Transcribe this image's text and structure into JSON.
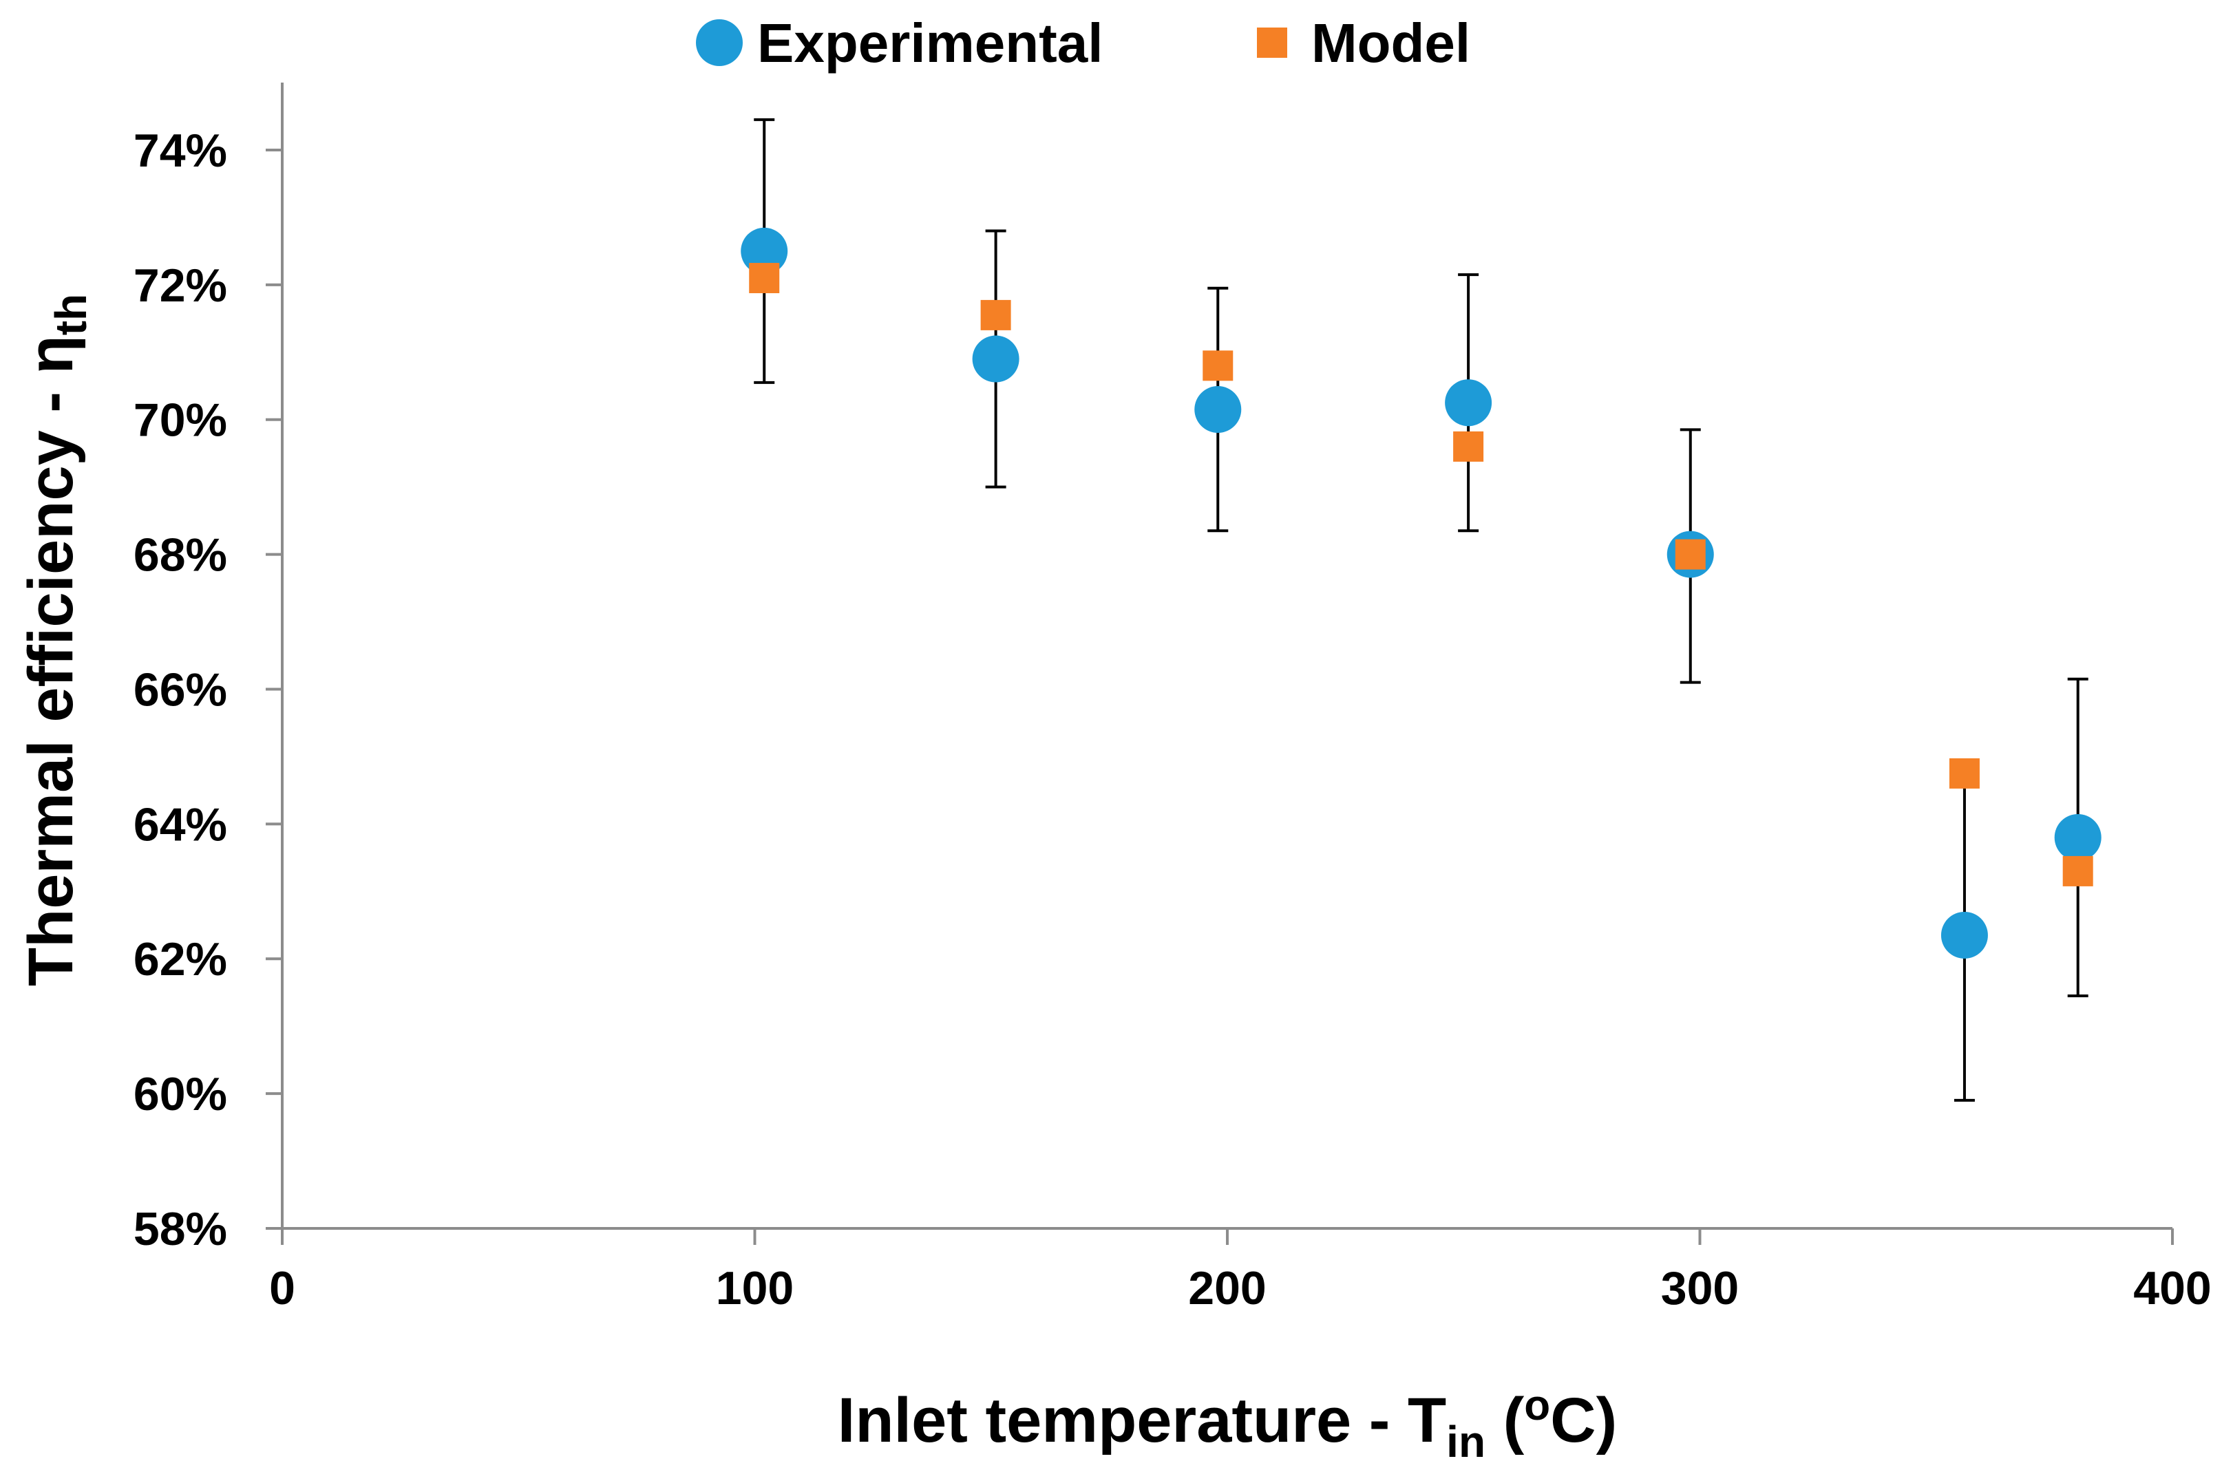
{
  "chart_data": {
    "type": "scatter",
    "title": "",
    "xlabel": {
      "main": "Inlet temperature - T",
      "sub": "in",
      "open": " (",
      "sup": "o",
      "close": "C)"
    },
    "ylabel": {
      "main": "Thermal efficiency - η",
      "sub": "th"
    },
    "xlim": [
      0,
      400
    ],
    "ylim": [
      0.58,
      0.75
    ],
    "x_ticks": [
      0,
      100,
      200,
      300,
      400
    ],
    "x_tick_labels": [
      "0",
      "100",
      "200",
      "300",
      "400"
    ],
    "y_ticks": [
      0.58,
      0.6,
      0.62,
      0.64,
      0.66,
      0.68,
      0.7,
      0.72,
      0.74
    ],
    "y_tick_labels": [
      "58%",
      "60%",
      "62%",
      "64%",
      "66%",
      "68%",
      "70%",
      "72%",
      "74%"
    ],
    "grid": false,
    "legend_position": "top-center",
    "series": [
      {
        "name": "Experimental",
        "marker": "circle",
        "color": "#1E9BD7",
        "x": [
          102,
          151,
          198,
          251,
          298,
          356,
          380
        ],
        "y": [
          0.725,
          0.709,
          0.7015,
          0.7025,
          0.68,
          0.6235,
          0.638
        ],
        "err_low": [
          0.7055,
          0.69,
          0.6835,
          0.6835,
          0.661,
          0.599,
          0.6145
        ],
        "err_high": [
          0.7445,
          0.728,
          0.7195,
          0.7215,
          0.6985,
          0.6475,
          0.6615
        ]
      },
      {
        "name": "Model",
        "marker": "square",
        "color": "#F58025",
        "x": [
          102,
          151,
          198,
          251,
          298,
          356,
          380
        ],
        "y": [
          0.721,
          0.7155,
          0.708,
          0.696,
          0.68,
          0.6475,
          0.633
        ]
      }
    ]
  }
}
